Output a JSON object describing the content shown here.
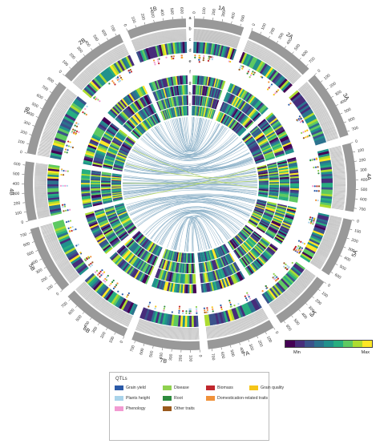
{
  "track_labels": [
    "a",
    "b",
    "c",
    "d",
    "e",
    "f",
    "g",
    "h",
    "i"
  ],
  "chromosomes": [
    {
      "name": "1A",
      "ticks": [
        "0",
        "100",
        "200",
        "300",
        "400",
        "500"
      ]
    },
    {
      "name": "2A",
      "ticks": [
        "0",
        "100",
        "200",
        "300",
        "400",
        "500",
        "600",
        "700"
      ]
    },
    {
      "name": "3A",
      "ticks": [
        "0",
        "100",
        "200",
        "300",
        "400",
        "500",
        "600",
        "700"
      ]
    },
    {
      "name": "4A",
      "ticks": [
        "0",
        "100",
        "200",
        "300",
        "400",
        "500",
        "600",
        "700"
      ]
    },
    {
      "name": "5A",
      "ticks": [
        "0",
        "100",
        "200",
        "300",
        "400",
        "500",
        "600"
      ]
    },
    {
      "name": "6A",
      "ticks": [
        "0",
        "100",
        "200",
        "300",
        "400",
        "500",
        "600"
      ]
    },
    {
      "name": "7A",
      "ticks": [
        "0",
        "100",
        "200",
        "300",
        "400",
        "500",
        "600",
        "700"
      ]
    },
    {
      "name": "7B",
      "ticks": [
        "0",
        "100",
        "200",
        "300",
        "400",
        "500",
        "600",
        "700"
      ]
    },
    {
      "name": "6B",
      "ticks": [
        "0",
        "100",
        "200",
        "300",
        "400",
        "500",
        "600",
        "700"
      ]
    },
    {
      "name": "5B",
      "ticks": [
        "0",
        "100",
        "200",
        "300",
        "400",
        "500",
        "600",
        "700"
      ]
    },
    {
      "name": "4B",
      "ticks": [
        "0",
        "100",
        "200",
        "300",
        "400",
        "500",
        "600"
      ]
    },
    {
      "name": "3B",
      "ticks": [
        "0",
        "100",
        "200",
        "300",
        "400",
        "500",
        "600",
        "700",
        "800"
      ]
    },
    {
      "name": "2B",
      "ticks": [
        "0",
        "100",
        "200",
        "300",
        "400",
        "500",
        "600",
        "700"
      ]
    },
    {
      "name": "1B",
      "ticks": [
        "0",
        "100",
        "200",
        "300",
        "400",
        "500",
        "600"
      ]
    }
  ],
  "heat_colors": [
    "#440154",
    "#472d7b",
    "#3b528b",
    "#2c728e",
    "#21918c",
    "#28ae80",
    "#5ec962",
    "#addc30",
    "#fde725"
  ],
  "scale": {
    "min_label": "Min",
    "max_label": "Max"
  },
  "legend": {
    "title": "QTLs",
    "items": [
      {
        "label": "Grain yield",
        "color": "#2b5aa8"
      },
      {
        "label": "Disease",
        "color": "#8fd14f"
      },
      {
        "label": "Biomass",
        "color": "#c0272d"
      },
      {
        "label": "Grain quality",
        "color": "#f5c518"
      },
      {
        "label": "Plants height",
        "color": "#a9d3ea"
      },
      {
        "label": "Root",
        "color": "#2e8b3e"
      },
      {
        "label": "Domestication-related traits",
        "color": "#f0913a"
      },
      {
        "label": "",
        "color": ""
      },
      {
        "label": "Phenology",
        "color": "#f29ad2"
      },
      {
        "label": "Other traits",
        "color": "#9a5a1d"
      }
    ]
  },
  "colors": {
    "ideogram": "#999999",
    "link_blue": "#6a9ab8",
    "link_green": "#9bc83a",
    "density_line": "#bdbdbd"
  }
}
